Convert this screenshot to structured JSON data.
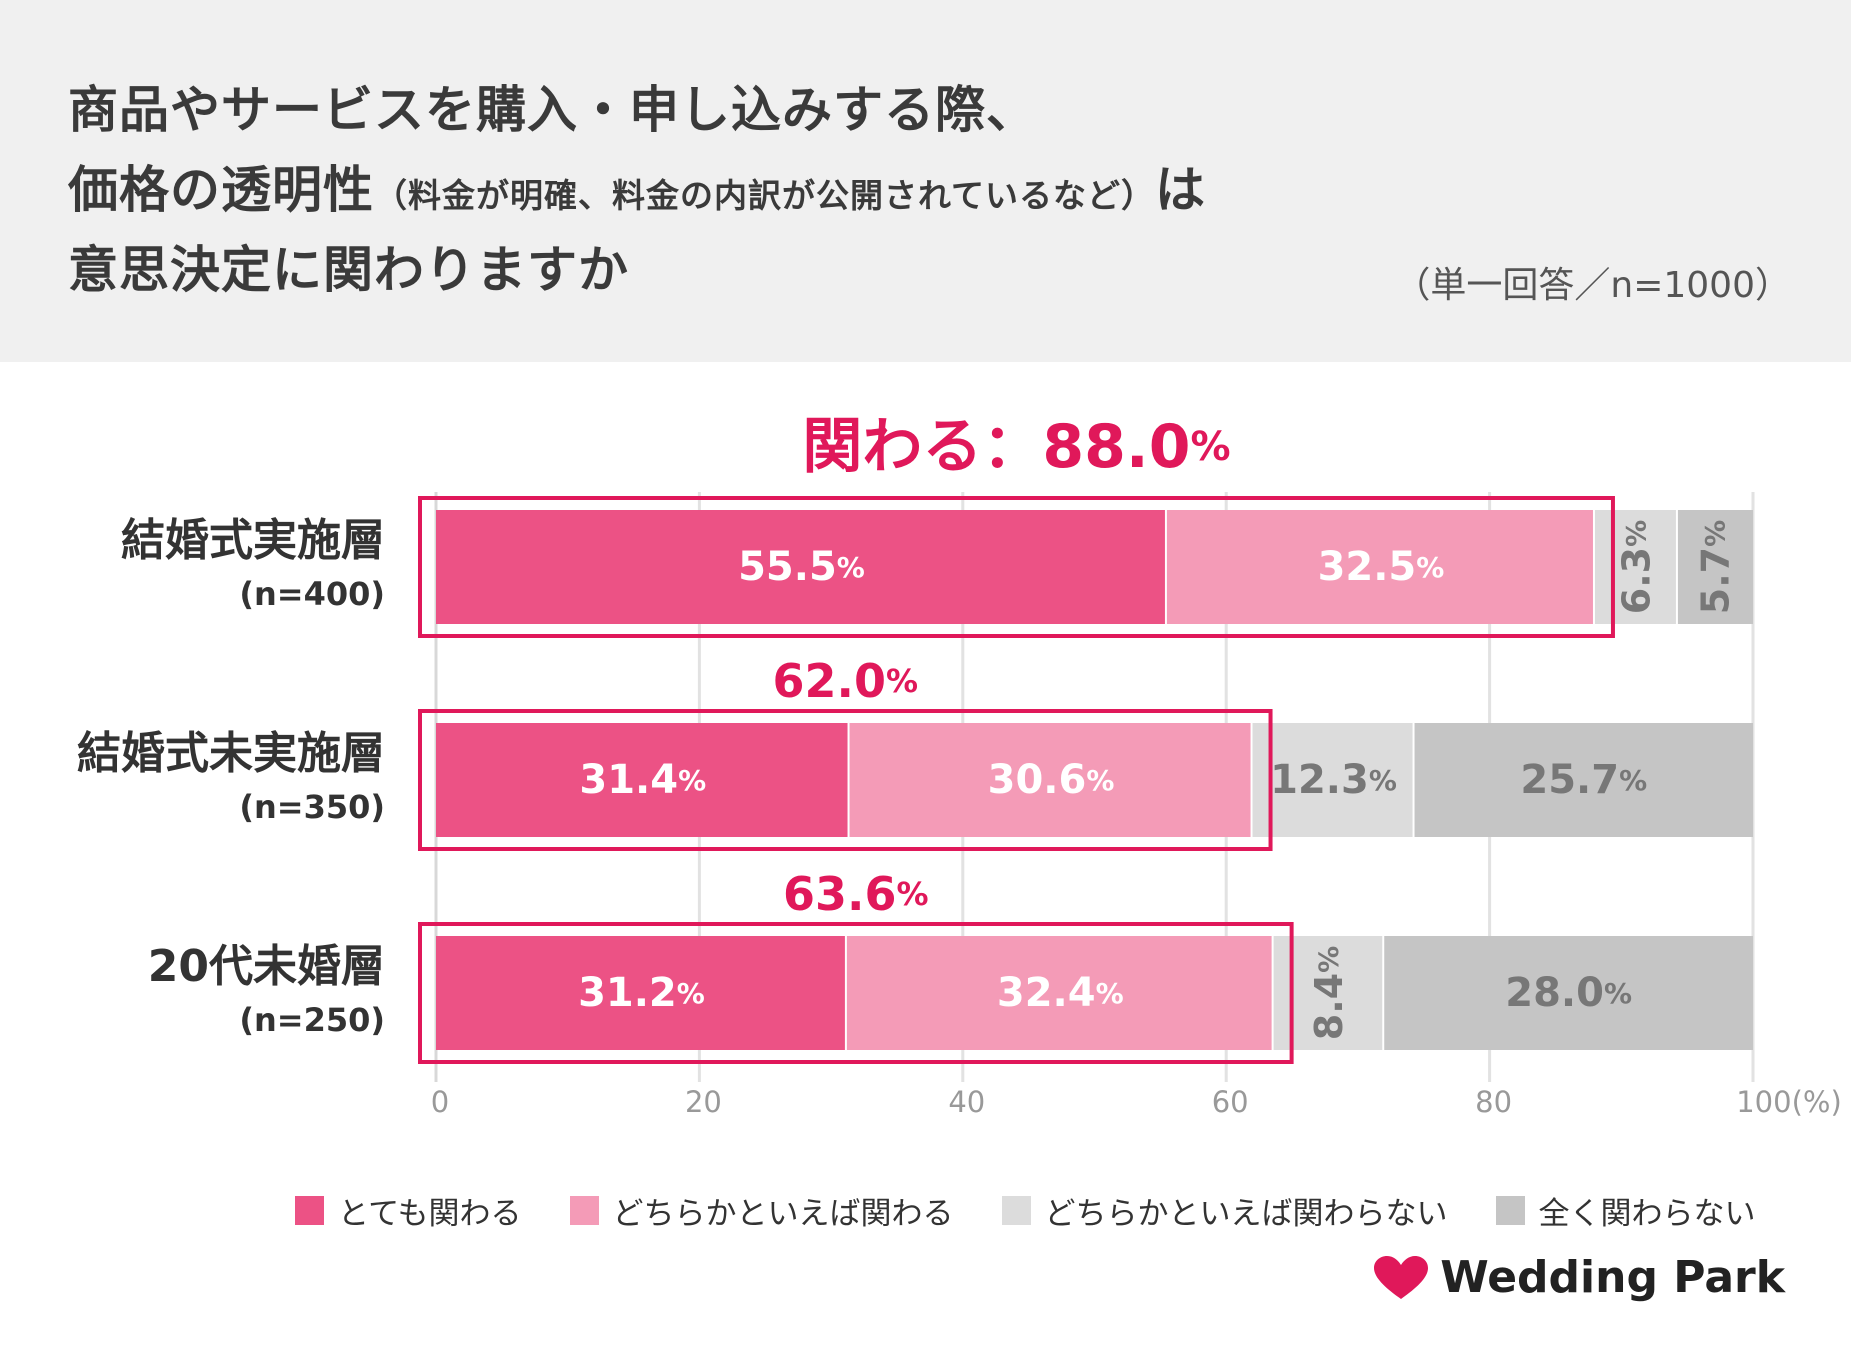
{
  "title": {
    "line1": "商品やサービスを購入・申し込みする際、",
    "line2_main": "価格の透明性",
    "line2_note": "（料金が明確、料金の内訳が公開されているなど）",
    "line2_end": "は",
    "line3": "意思決定に関わりますか"
  },
  "sample_note": "（単一回答／n=1000）",
  "colors": {
    "very": "#ec5285",
    "somewhat": "#f49bb7",
    "somewhat_not": "#dcdcdc",
    "not_at_all": "#c5c5c5",
    "highlight": "#e0185a"
  },
  "chart_data": {
    "type": "bar",
    "orientation": "horizontal",
    "stacked": true,
    "xlim": [
      0,
      100
    ],
    "xticks": [
      "0",
      "20",
      "40",
      "60",
      "80",
      "100(%)"
    ],
    "categories": [
      {
        "label": "結婚式実施層",
        "n": "(n=400)",
        "total": "88.0",
        "total_prefix": "関わる：",
        "unit": "%"
      },
      {
        "label": "結婚式未実施層",
        "n": "(n=350)",
        "total": "62.0",
        "total_prefix": "",
        "unit": "%"
      },
      {
        "label": "20代未婚層",
        "n": "(n=250)",
        "total": "63.6",
        "total_prefix": "",
        "unit": "%"
      }
    ],
    "series": [
      {
        "name": "とても関わる",
        "values": [
          55.5,
          31.4,
          31.2
        ],
        "labels": [
          "55.5",
          "31.4",
          "31.2"
        ]
      },
      {
        "name": "どちらかといえば関わる",
        "values": [
          32.5,
          30.6,
          32.4
        ],
        "labels": [
          "32.5",
          "30.6",
          "32.4"
        ]
      },
      {
        "name": "どちらかといえば関わらない",
        "values": [
          6.3,
          12.3,
          8.4
        ],
        "labels": [
          "6.3",
          "12.3",
          "8.4"
        ]
      },
      {
        "name": "全く関わらない",
        "values": [
          5.7,
          25.7,
          28.0
        ],
        "labels": [
          "5.7",
          "25.7",
          "28.0"
        ]
      }
    ],
    "percent_sign": "%"
  },
  "legend": [
    {
      "label": "とても関わる",
      "color": "#ec5285"
    },
    {
      "label": "どちらかといえば関わる",
      "color": "#f49bb7"
    },
    {
      "label": "どちらかといえば関わらない",
      "color": "#dcdcdc"
    },
    {
      "label": "全く関わらない",
      "color": "#c5c5c5"
    }
  ],
  "logo": {
    "text": "Wedding Park",
    "icon": "heart-icon"
  }
}
